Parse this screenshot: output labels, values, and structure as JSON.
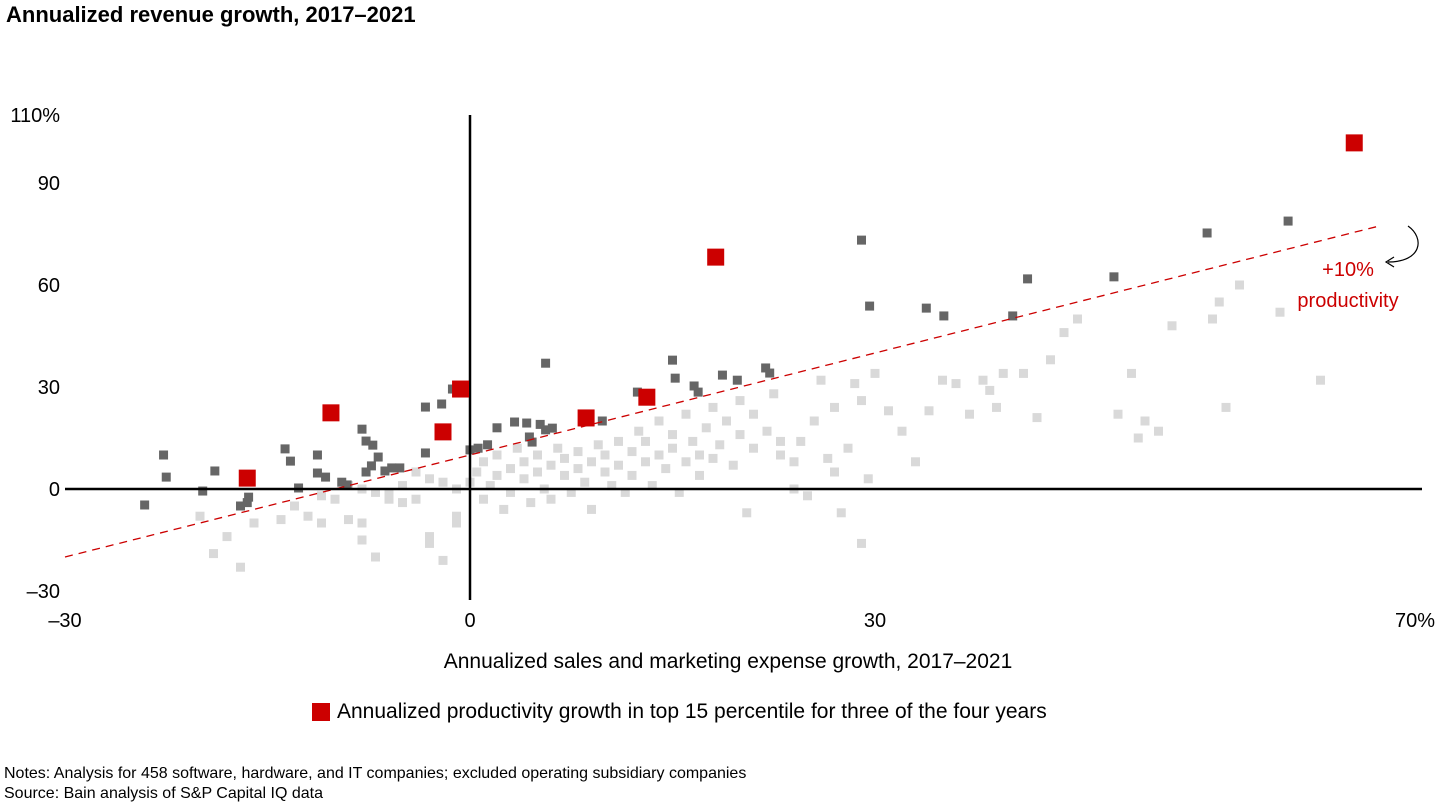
{
  "chart_data": {
    "type": "scatter",
    "title": "Annualized revenue growth, 2017–2021",
    "xlabel": "Annualized sales and marketing expense growth, 2017–2021",
    "ylabel": "",
    "xlim": [
      -30,
      70
    ],
    "ylim": [
      -30,
      110
    ],
    "x_ticks": [
      {
        "v": -30,
        "label": "–30"
      },
      {
        "v": 0,
        "label": "0"
      },
      {
        "v": 30,
        "label": "30"
      },
      {
        "v": 70,
        "label": "70%"
      }
    ],
    "y_ticks": [
      {
        "v": -30,
        "label": "–30"
      },
      {
        "v": 0,
        "label": "0"
      },
      {
        "v": 30,
        "label": "30"
      },
      {
        "v": 60,
        "label": "60"
      },
      {
        "v": 90,
        "label": "90"
      },
      {
        "v": 110,
        "label": "110%"
      }
    ],
    "grid": false,
    "colors": {
      "highlight": "#cc0000",
      "dark": "#666666",
      "light": "#d9d9d9",
      "line": "#cc0000"
    },
    "reference_line": {
      "label_line1": "+10%",
      "label_line2": "productivity",
      "from": [
        -30,
        -20
      ],
      "to": [
        67.5,
        77.5
      ],
      "style": "dashed"
    },
    "series": [
      {
        "name": "Annualized productivity growth in top 15 percentile for three of the four years",
        "color": "#cc0000",
        "points": [
          [
            -16.5,
            3.2
          ],
          [
            -10.3,
            22.4
          ],
          [
            -2.0,
            16.8
          ],
          [
            -0.7,
            29.4
          ],
          [
            8.6,
            20.9
          ],
          [
            13.1,
            27
          ],
          [
            18.2,
            68.2
          ],
          [
            65.5,
            101.8
          ]
        ]
      },
      {
        "color": "#666666",
        "points": [
          [
            -24.1,
            -4.7
          ],
          [
            -22.7,
            10
          ],
          [
            -22.5,
            3.5
          ],
          [
            -19.8,
            -0.6
          ],
          [
            -18.9,
            5.3
          ],
          [
            -17,
            -5
          ],
          [
            -16.5,
            -4
          ],
          [
            -16.4,
            -2.4
          ],
          [
            -13.7,
            11.8
          ],
          [
            -13.3,
            8.2
          ],
          [
            -12.7,
            0.3
          ],
          [
            -11.3,
            10
          ],
          [
            -11.3,
            4.7
          ],
          [
            -10.7,
            3.5
          ],
          [
            -9.5,
            2
          ],
          [
            -9.1,
            1.2
          ],
          [
            -8,
            17.6
          ],
          [
            -7.7,
            14.1
          ],
          [
            -7.2,
            12.9
          ],
          [
            -7.3,
            6.8
          ],
          [
            -6.8,
            9.4
          ],
          [
            -7.7,
            5
          ],
          [
            -6.3,
            5.3
          ],
          [
            -5.8,
            6.2
          ],
          [
            -5.2,
            6.2
          ],
          [
            -3.3,
            10.6
          ],
          [
            -3.3,
            24.1
          ],
          [
            -2.1,
            25
          ],
          [
            -1.3,
            29.4
          ],
          [
            5.6,
            37
          ],
          [
            2,
            18
          ],
          [
            3.3,
            19.7
          ],
          [
            4.2,
            19.4
          ],
          [
            5.2,
            19
          ],
          [
            5.6,
            17.4
          ],
          [
            6.1,
            17.9
          ],
          [
            4.4,
            15.3
          ],
          [
            4.6,
            13.8
          ],
          [
            0,
            11.5
          ],
          [
            0.6,
            12
          ],
          [
            1.3,
            13
          ],
          [
            9.8,
            20
          ],
          [
            12.4,
            28.5
          ],
          [
            15,
            37.9
          ],
          [
            15.2,
            32.6
          ],
          [
            16.6,
            30.3
          ],
          [
            16.9,
            28.5
          ],
          [
            18.7,
            33.5
          ],
          [
            19.8,
            32
          ],
          [
            21.9,
            35.6
          ],
          [
            22.2,
            34.1
          ],
          [
            29,
            73.2
          ],
          [
            29.6,
            53.8
          ],
          [
            33.8,
            53.2
          ],
          [
            35.1,
            50.9
          ],
          [
            40.2,
            50.9
          ],
          [
            41.3,
            61.8
          ],
          [
            47.7,
            62.4
          ],
          [
            54.6,
            75.3
          ],
          [
            60.6,
            78.8
          ]
        ]
      },
      {
        "color": "#d9d9d9",
        "points": [
          [
            -20,
            -8
          ],
          [
            -18,
            -14
          ],
          [
            -19,
            -19
          ],
          [
            -17,
            -23
          ],
          [
            -16,
            -10
          ],
          [
            -14,
            -9
          ],
          [
            -13,
            -5
          ],
          [
            -12,
            -8
          ],
          [
            -11,
            -10
          ],
          [
            -9,
            -9
          ],
          [
            -8,
            -10
          ],
          [
            -8,
            -15
          ],
          [
            -7,
            -20
          ],
          [
            -6,
            -3
          ],
          [
            -5,
            -4
          ],
          [
            -4,
            -3
          ],
          [
            -3,
            -14
          ],
          [
            -3,
            -16
          ],
          [
            -2,
            -21
          ],
          [
            -1,
            -10
          ],
          [
            -1,
            -8
          ],
          [
            -1,
            0
          ],
          [
            -2,
            2
          ],
          [
            -3,
            3
          ],
          [
            -4,
            5
          ],
          [
            -5,
            1
          ],
          [
            -6,
            -1
          ],
          [
            -7,
            -1
          ],
          [
            -8,
            0
          ],
          [
            -9,
            1
          ],
          [
            -10,
            -3
          ],
          [
            -11,
            -2
          ],
          [
            0,
            2
          ],
          [
            0.5,
            5
          ],
          [
            1,
            -3
          ],
          [
            1,
            8
          ],
          [
            1.5,
            1
          ],
          [
            2,
            4
          ],
          [
            2,
            10
          ],
          [
            2.5,
            -6
          ],
          [
            3,
            6
          ],
          [
            3,
            -1
          ],
          [
            3.5,
            12
          ],
          [
            4,
            3
          ],
          [
            4,
            8
          ],
          [
            4.5,
            -4
          ],
          [
            5,
            10
          ],
          [
            5,
            5
          ],
          [
            5.5,
            0
          ],
          [
            6,
            7
          ],
          [
            6,
            -3
          ],
          [
            6.5,
            12
          ],
          [
            7,
            4
          ],
          [
            7,
            9
          ],
          [
            7.5,
            -1
          ],
          [
            8,
            6
          ],
          [
            8,
            11
          ],
          [
            8.5,
            2
          ],
          [
            9,
            8
          ],
          [
            9,
            -6
          ],
          [
            9.5,
            13
          ],
          [
            10,
            5
          ],
          [
            10,
            10
          ],
          [
            10.5,
            1
          ],
          [
            11,
            14
          ],
          [
            11,
            7
          ],
          [
            11.5,
            -1
          ],
          [
            12,
            11
          ],
          [
            12,
            4
          ],
          [
            12.5,
            17
          ],
          [
            13,
            8
          ],
          [
            13,
            14
          ],
          [
            13.5,
            1
          ],
          [
            14,
            10
          ],
          [
            14,
            20
          ],
          [
            14.5,
            6
          ],
          [
            15,
            16
          ],
          [
            15,
            12
          ],
          [
            15.5,
            -1
          ],
          [
            16,
            8
          ],
          [
            16,
            22
          ],
          [
            16.5,
            14
          ],
          [
            17,
            10
          ],
          [
            17,
            4
          ],
          [
            17.5,
            18
          ],
          [
            18,
            9
          ],
          [
            18,
            24
          ],
          [
            18.5,
            13
          ],
          [
            19,
            20
          ],
          [
            19.5,
            7
          ],
          [
            20,
            16
          ],
          [
            20,
            26
          ],
          [
            20.5,
            -7
          ],
          [
            21,
            12
          ],
          [
            21,
            22
          ],
          [
            22,
            17
          ],
          [
            22.5,
            28
          ],
          [
            23,
            10
          ],
          [
            23,
            14
          ],
          [
            24,
            8
          ],
          [
            24,
            0
          ],
          [
            24.5,
            14
          ],
          [
            25,
            -2
          ],
          [
            25.5,
            20
          ],
          [
            26,
            32
          ],
          [
            26.5,
            9
          ],
          [
            27,
            5
          ],
          [
            27,
            24
          ],
          [
            27.5,
            -7
          ],
          [
            28,
            12
          ],
          [
            28.5,
            31
          ],
          [
            29,
            26
          ],
          [
            29,
            -16
          ],
          [
            29.5,
            3
          ],
          [
            30,
            34
          ],
          [
            31,
            23
          ],
          [
            32,
            17
          ],
          [
            33,
            8
          ],
          [
            34,
            23
          ],
          [
            35,
            32
          ],
          [
            36,
            31
          ],
          [
            37,
            22
          ],
          [
            38,
            32
          ],
          [
            38.5,
            29
          ],
          [
            39,
            24
          ],
          [
            39.5,
            34
          ],
          [
            41,
            34
          ],
          [
            42,
            21
          ],
          [
            43,
            38
          ],
          [
            44,
            46
          ],
          [
            45,
            50
          ],
          [
            48,
            22
          ],
          [
            49,
            34
          ],
          [
            49.5,
            15
          ],
          [
            50,
            20
          ],
          [
            51,
            17
          ],
          [
            52,
            48
          ],
          [
            55,
            50
          ],
          [
            55.5,
            55
          ],
          [
            56,
            24
          ],
          [
            57,
            60
          ],
          [
            60,
            52
          ],
          [
            63,
            32
          ]
        ]
      }
    ]
  },
  "legend": {
    "label": "Annualized productivity growth in top 15 percentile for three of the four years"
  },
  "notes": {
    "line1": "Notes: Analysis for 458 software, hardware, and IT companies; excluded operating subsidiary companies",
    "line2": "Source: Bain analysis of S&P Capital IQ data"
  }
}
